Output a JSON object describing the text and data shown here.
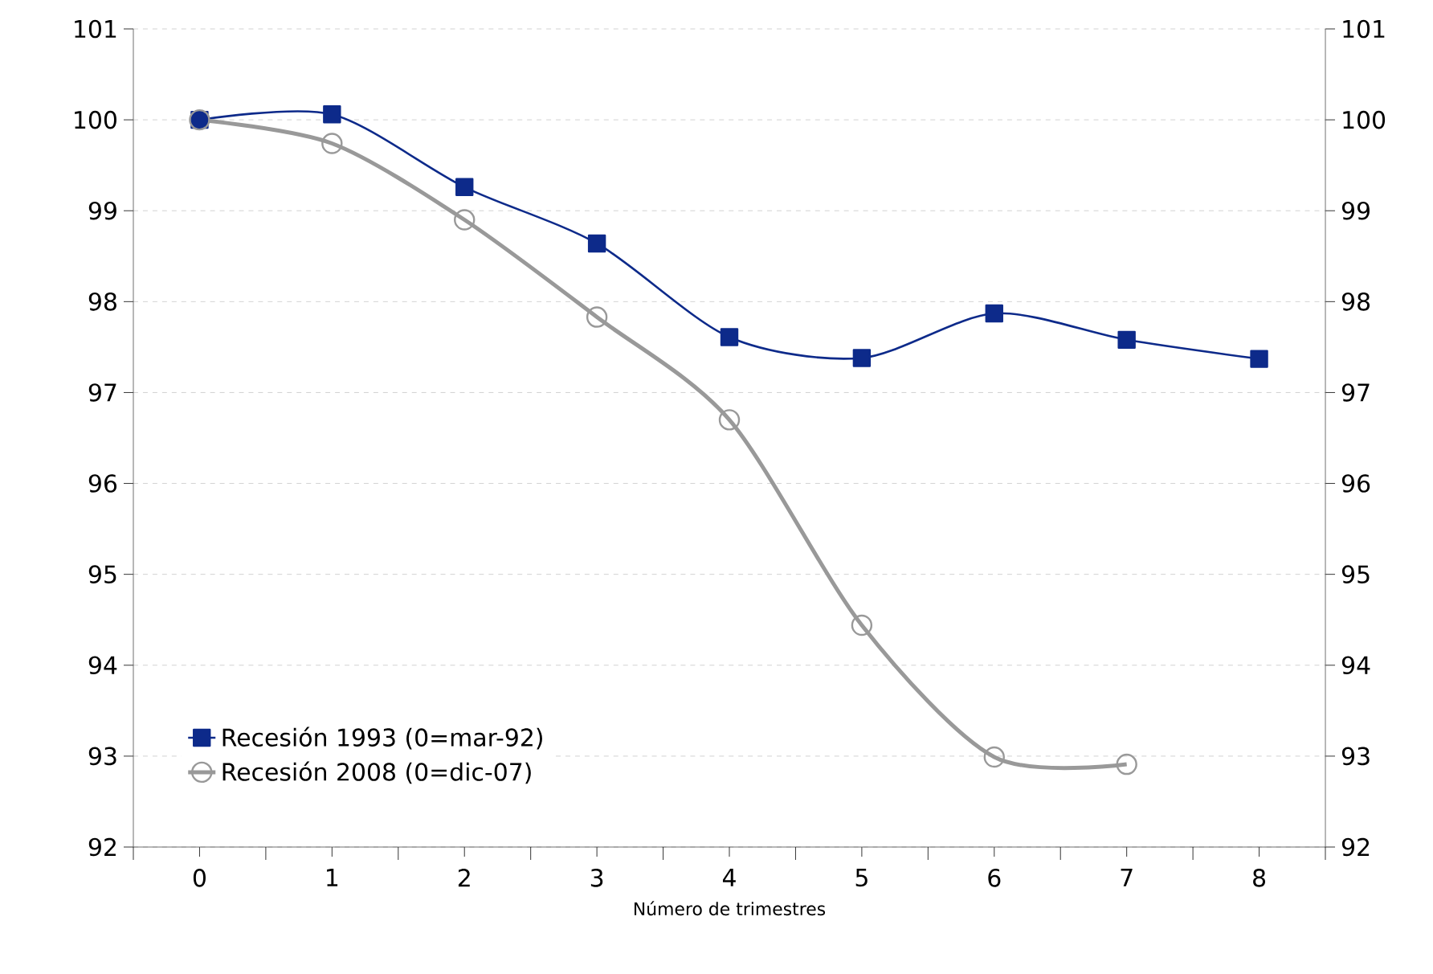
{
  "chart_data": {
    "type": "line",
    "xlabel": "Número de trimestres",
    "categories": [
      "0",
      "1",
      "2",
      "3",
      "4",
      "5",
      "6",
      "7",
      "8"
    ],
    "series": [
      {
        "name": "Recesión 1993 (0=mar-92)",
        "color": "#0d2a8a",
        "marker": "square",
        "values": [
          100,
          100.06,
          99.26,
          98.64,
          97.61,
          97.38,
          97.87,
          97.58,
          97.37
        ]
      },
      {
        "name": "Recesión 2008 (0=dic-07)",
        "color": "#999999",
        "marker": "circle",
        "values": [
          100,
          99.74,
          98.9,
          97.83,
          96.7,
          94.44,
          92.99,
          92.91,
          null
        ]
      }
    ],
    "ylim": [
      92,
      101
    ],
    "yticks": [
      92,
      93,
      94,
      95,
      96,
      97,
      98,
      99,
      100,
      101
    ],
    "y2lim": [
      92,
      101
    ],
    "y2ticks": [
      92,
      93,
      94,
      95,
      96,
      97,
      98,
      99,
      100,
      101
    ],
    "grid": "y",
    "legend": "bottom left"
  }
}
